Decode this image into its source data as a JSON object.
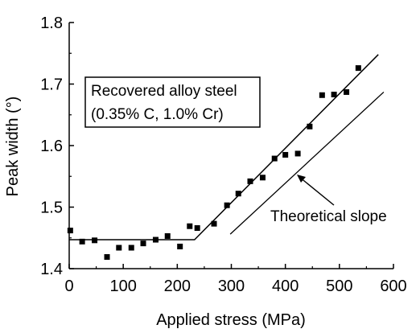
{
  "chart_data": {
    "type": "scatter",
    "xlabel": "Applied stress (MPa)",
    "ylabel": "Peak width (°)",
    "xlim": [
      0,
      600
    ],
    "ylim": [
      1.4,
      1.8
    ],
    "xticks": [
      0,
      100,
      200,
      300,
      400,
      500,
      600
    ],
    "yticks": [
      1.4,
      1.5,
      1.6,
      1.7,
      1.8
    ],
    "xtick_labels": [
      "0",
      "100",
      "200",
      "300",
      "400",
      "500",
      "600"
    ],
    "ytick_labels": [
      "1.4",
      "1.5",
      "1.6",
      "1.7",
      "1.8"
    ],
    "grid": false,
    "series": [
      {
        "marker": "square",
        "points": [
          [
            2,
            1.462
          ],
          [
            24,
            1.444
          ],
          [
            47,
            1.446
          ],
          [
            70,
            1.419
          ],
          [
            92,
            1.434
          ],
          [
            115,
            1.434
          ],
          [
            137,
            1.441
          ],
          [
            160,
            1.447
          ],
          [
            182,
            1.453
          ],
          [
            205,
            1.436
          ],
          [
            223,
            1.469
          ],
          [
            237,
            1.466
          ],
          [
            268,
            1.473
          ],
          [
            292,
            1.503
          ],
          [
            313,
            1.522
          ],
          [
            335,
            1.542
          ],
          [
            358,
            1.548
          ],
          [
            380,
            1.579
          ],
          [
            400,
            1.585
          ],
          [
            423,
            1.587
          ],
          [
            445,
            1.631
          ],
          [
            468,
            1.682
          ],
          [
            490,
            1.683
          ],
          [
            513,
            1.687
          ],
          [
            535,
            1.726
          ]
        ]
      }
    ],
    "fit_lines": [
      {
        "points": [
          [
            0,
            1.447
          ],
          [
            232,
            1.447
          ],
          [
            572,
            1.748
          ]
        ]
      }
    ],
    "theoretical_line": {
      "points": [
        [
          298,
          1.456
        ],
        [
          582,
          1.687
        ]
      ]
    },
    "annotations": [
      {
        "text": "Recovered alloy steel",
        "id": "box_line1"
      },
      {
        "text": "(0.35% C, 1.0% Cr)",
        "id": "box_line2"
      },
      {
        "text": "Theoretical slope",
        "id": "theoretical",
        "points_to": [
          365,
          1.575
        ]
      }
    ]
  }
}
